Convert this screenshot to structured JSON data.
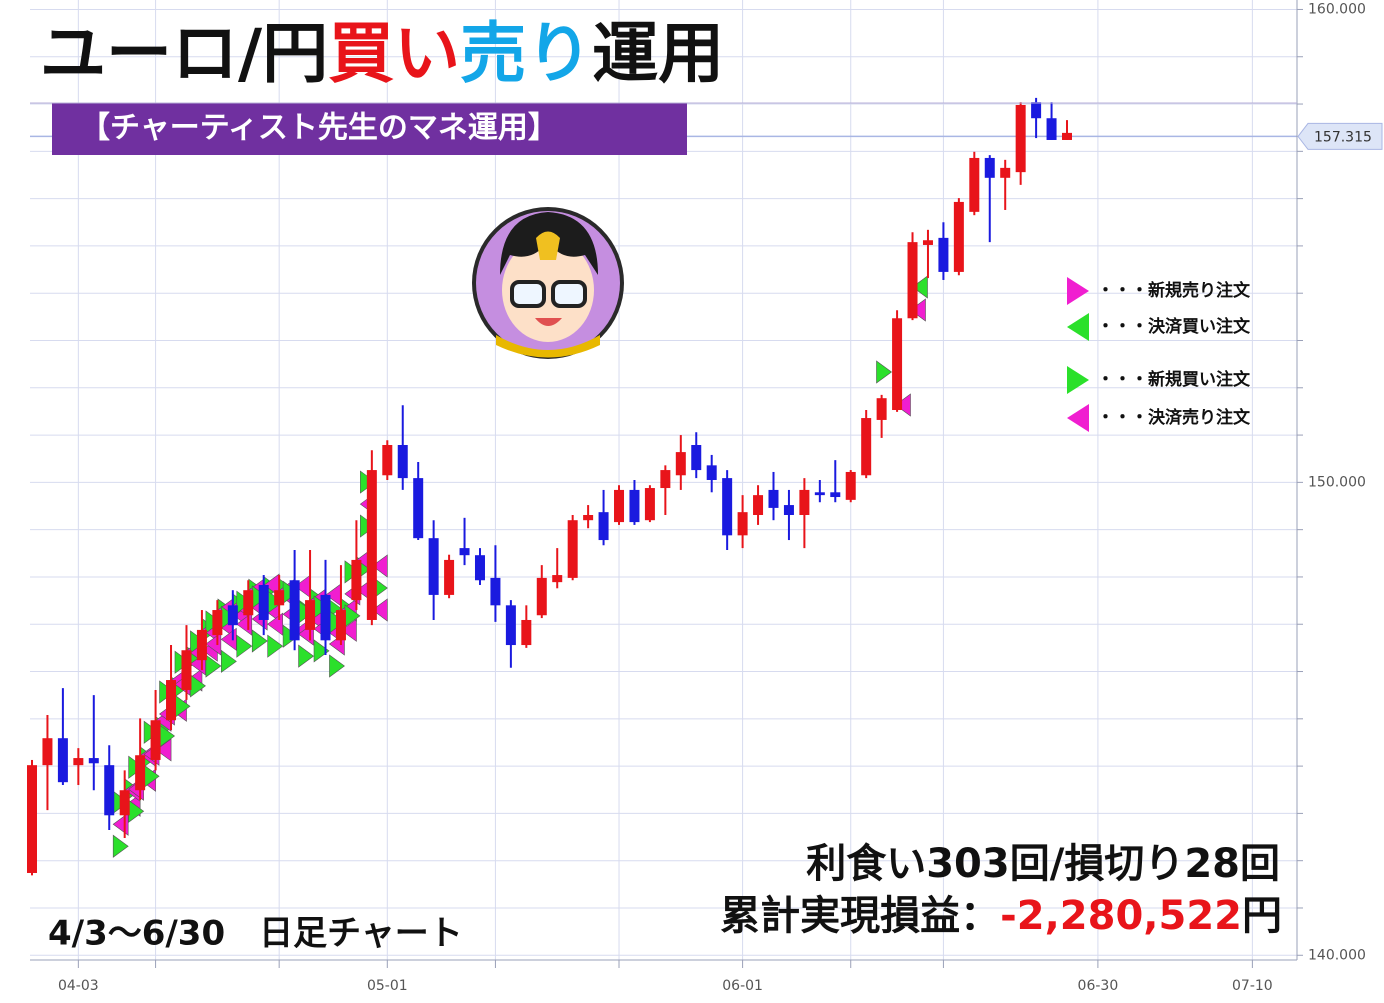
{
  "title": {
    "parts": [
      "ユーロ/円",
      "買い",
      "売り",
      "運用"
    ],
    "colors": [
      "#111111",
      "#e8141a",
      "#13a6e8",
      "#111111"
    ]
  },
  "subtitle": "【チャーティスト先生のマネ運用】",
  "legend": [
    {
      "label": "・・・新規売り注文",
      "color": "#f01ed0",
      "direction": "right"
    },
    {
      "label": "・・・決済買い注文",
      "color": "#2be02b",
      "direction": "left"
    },
    {
      "label": "・・・新規買い注文",
      "color": "#2be02b",
      "direction": "right"
    },
    {
      "label": "・・・決済売り注文",
      "color": "#f01ed0",
      "direction": "left"
    }
  ],
  "stats": {
    "trades": "利食い303回/損切り28回",
    "pnl_label": "累計実現損益：",
    "pnl_value": "-2,280,522",
    "pnl_unit": "円"
  },
  "period": "4/3～6/30　日足チャート",
  "chart_data": {
    "type": "candlestick",
    "categories": [
      null,
      null,
      null,
      "04-03",
      null,
      null,
      null,
      null,
      null,
      null,
      null,
      null,
      null,
      null,
      null,
      null,
      null,
      null,
      null,
      null,
      null,
      null,
      null,
      "05-01",
      null,
      null,
      null,
      null,
      null,
      null,
      null,
      null,
      null,
      null,
      null,
      null,
      null,
      null,
      null,
      null,
      null,
      null,
      null,
      null,
      null,
      null,
      "06-01",
      null,
      null,
      null,
      null,
      null,
      null,
      null,
      null,
      null,
      null,
      null,
      null,
      null,
      null,
      null,
      null,
      null,
      null,
      null,
      null,
      null,
      null,
      "06-30",
      null,
      null,
      null,
      null,
      null,
      null,
      null,
      null,
      null,
      "07-10"
    ],
    "open": [
      141.74,
      144.02,
      144.59,
      144.02,
      144.17,
      144.02,
      142.96,
      143.49,
      144.13,
      144.97,
      145.61,
      146.24,
      146.77,
      147.4,
      147.19,
      147.83,
      147.4,
      147.93,
      146.88,
      147.62,
      146.66,
      147.51,
      147.09,
      150.15,
      150.79,
      150.09,
      148.82,
      147.62,
      148.61,
      148.46,
      147.98,
      147.4,
      146.56,
      147.19,
      147.89,
      147.98,
      149.2,
      149.37,
      149.16,
      149.84,
      149.2,
      149.88,
      150.15,
      150.79,
      150.36,
      150.09,
      148.88,
      149.31,
      149.84,
      149.52,
      149.31,
      149.79,
      149.79,
      149.63,
      150.15,
      151.32,
      151.53,
      153.47,
      155.02,
      155.17,
      154.45,
      155.72,
      156.86,
      156.44,
      156.56,
      158.04,
      157.7,
      157.24,
      null,
      null,
      null,
      null,
      null,
      null,
      null,
      null,
      null,
      null,
      null,
      null
    ],
    "high": [
      144.13,
      145.08,
      145.65,
      144.38,
      145.5,
      144.44,
      143.91,
      145.01,
      145.61,
      146.56,
      146.98,
      147.3,
      147.51,
      147.72,
      147.93,
      148.04,
      148.04,
      148.57,
      148.57,
      148.36,
      148.25,
      149.2,
      150.68,
      150.89,
      151.63,
      150.43,
      149.2,
      148.47,
      149.25,
      148.61,
      148.67,
      147.51,
      147.4,
      148.25,
      148.61,
      149.31,
      149.52,
      149.84,
      149.94,
      150.05,
      149.94,
      150.36,
      151.0,
      151.06,
      150.58,
      150.26,
      149.73,
      149.94,
      150.22,
      149.84,
      150.09,
      150.05,
      150.47,
      150.26,
      151.53,
      151.85,
      153.64,
      155.29,
      155.34,
      155.5,
      156.01,
      156.99,
      156.92,
      156.82,
      158.04,
      158.13,
      158.04,
      157.66,
      null,
      null,
      null,
      null,
      null,
      null,
      null,
      null,
      null,
      null,
      null,
      null
    ],
    "low": [
      141.69,
      143.07,
      143.6,
      143.6,
      143.49,
      142.65,
      142.48,
      143.28,
      143.91,
      144.76,
      145.4,
      146.03,
      146.56,
      146.66,
      146.88,
      146.77,
      147.09,
      146.45,
      146.66,
      146.35,
      146.56,
      147.3,
      146.98,
      150.05,
      149.84,
      148.78,
      147.09,
      147.55,
      148.25,
      147.83,
      147.05,
      146.08,
      146.5,
      147.13,
      147.76,
      147.93,
      149.03,
      148.67,
      149.1,
      149.1,
      149.16,
      149.31,
      149.84,
      150.09,
      149.79,
      148.57,
      148.61,
      149.1,
      149.2,
      148.78,
      148.61,
      149.58,
      149.58,
      149.58,
      150.09,
      150.94,
      151.49,
      153.43,
      154.32,
      154.28,
      154.38,
      155.65,
      155.08,
      155.76,
      156.29,
      157.28,
      157.24,
      157.24,
      null,
      null,
      null,
      null,
      null,
      null,
      null,
      null,
      null,
      null,
      null,
      null
    ],
    "close": [
      144.02,
      144.59,
      143.66,
      144.17,
      144.06,
      142.96,
      143.49,
      144.23,
      144.97,
      145.82,
      146.45,
      146.88,
      147.3,
      146.98,
      147.72,
      147.09,
      147.72,
      146.66,
      147.51,
      146.66,
      147.3,
      148.36,
      150.26,
      150.79,
      150.09,
      148.82,
      147.62,
      148.36,
      148.46,
      147.93,
      147.4,
      146.56,
      147.09,
      147.98,
      148.04,
      149.2,
      149.31,
      148.78,
      149.84,
      149.16,
      149.88,
      150.26,
      150.64,
      150.26,
      150.05,
      148.88,
      149.37,
      149.73,
      149.46,
      149.31,
      149.84,
      149.73,
      149.69,
      150.22,
      151.36,
      151.78,
      153.47,
      155.08,
      155.12,
      154.45,
      155.93,
      156.86,
      156.44,
      156.65,
      157.98,
      157.7,
      157.24,
      157.39,
      null,
      null,
      null,
      null,
      null,
      null,
      null,
      null,
      null,
      null,
      null,
      null
    ],
    "up_color": "#e8141a",
    "down_color": "#1a1adf",
    "ylim": [
      139.9,
      160.2
    ],
    "yticks": [
      {
        "value": 140,
        "label": "140.000"
      },
      {
        "value": 150,
        "label": "150.000"
      },
      {
        "value": 160,
        "label": "160.000"
      }
    ],
    "minor_yticks": [
      141,
      142,
      143,
      144,
      145,
      146,
      147,
      148,
      149,
      151,
      152,
      153,
      154,
      155,
      156,
      157,
      158,
      159
    ],
    "minor_x_grid": [
      8,
      16,
      30,
      38,
      53,
      59
    ],
    "last_price": {
      "value": 157.315,
      "label": "157.315"
    },
    "grid": true
  }
}
